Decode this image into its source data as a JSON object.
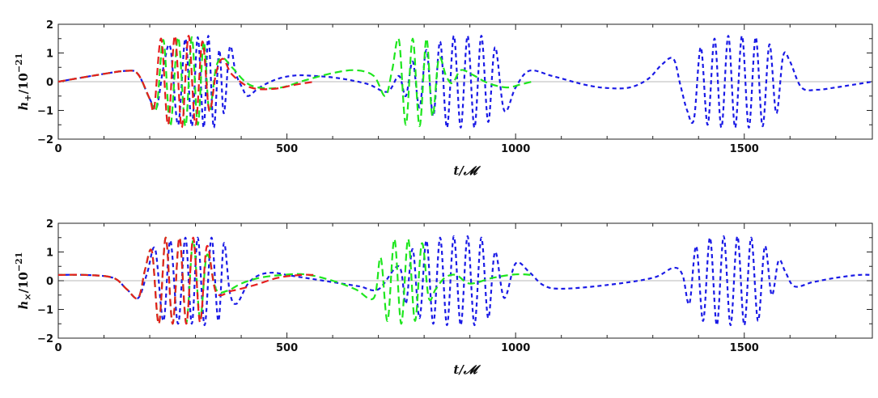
{
  "chart_data": [
    {
      "type": "line",
      "title": "",
      "xlabel": "t/𝓜",
      "ylabel_base": "h",
      "ylabel_sub": "+",
      "ylabel_tail": "/10",
      "ylabel_exp": "−21",
      "xlim": [
        0,
        1780
      ],
      "ylim": [
        -2,
        2
      ],
      "x_ticks": [
        0,
        500,
        1000,
        1500
      ],
      "y_ticks": [
        -2,
        -1,
        0,
        1,
        2
      ],
      "zero_line": true,
      "series": [
        {
          "color": "#1a1ae6",
          "dash": "short",
          "x": [
            0,
            80,
            150,
            175,
            200,
            215,
            230,
            245,
            262,
            278,
            292,
            305,
            318,
            328,
            340,
            352,
            362,
            375,
            388,
            402,
            415,
            440,
            480,
            520,
            560,
            600,
            640,
            680,
            720,
            745,
            760,
            775,
            790,
            805,
            820,
            835,
            850,
            865,
            880,
            895,
            910,
            925,
            940,
            955,
            975,
            1000,
            1030,
            1080,
            1150,
            1200,
            1250,
            1290,
            1320,
            1345,
            1360,
            1375,
            1390,
            1405,
            1420,
            1435,
            1450,
            1465,
            1480,
            1495,
            1510,
            1525,
            1540,
            1555,
            1570,
            1585,
            1600,
            1625,
            1660,
            1700,
            1740,
            1780
          ],
          "y": [
            0,
            0.22,
            0.38,
            0.25,
            -0.6,
            -0.9,
            0.5,
            1.2,
            -1.5,
            1.5,
            -1.55,
            1.55,
            -1.6,
            1.6,
            -1.6,
            1.1,
            -1.1,
            1.2,
            0.3,
            -0.2,
            -0.5,
            -0.2,
            0.1,
            0.22,
            0.2,
            0.15,
            0.05,
            -0.1,
            -0.35,
            0.2,
            -0.5,
            0.7,
            -0.9,
            1.1,
            -1.2,
            1.4,
            -1.6,
            1.6,
            -1.6,
            1.6,
            -1.6,
            1.6,
            -1.4,
            1.2,
            -1.0,
            -0.2,
            0.38,
            0.2,
            -0.1,
            -0.22,
            -0.2,
            0.1,
            0.6,
            0.8,
            -0.1,
            -1.0,
            -1.3,
            1.2,
            -1.5,
            1.5,
            -1.6,
            1.6,
            -1.6,
            1.6,
            -1.6,
            1.55,
            -1.55,
            1.3,
            -1.1,
            0.9,
            0.7,
            -0.2,
            -0.28,
            -0.2,
            -0.1,
            0.0
          ]
        },
        {
          "color": "#1ee61e",
          "dash": "long",
          "x": [
            0,
            80,
            150,
            175,
            200,
            215,
            230,
            245,
            262,
            278,
            292,
            305,
            318,
            330,
            345,
            360,
            380,
            420,
            480,
            540,
            600,
            650,
            690,
            715,
            730,
            745,
            760,
            775,
            790,
            805,
            818,
            832,
            848,
            862,
            880,
            905,
            940,
            980,
            1010,
            1035
          ],
          "y": [
            0,
            0.22,
            0.38,
            0.25,
            -0.6,
            -0.9,
            1.45,
            -1.55,
            1.55,
            -1.55,
            1.55,
            -1.5,
            1.4,
            -1.0,
            0.5,
            0.82,
            0.5,
            -0.12,
            -0.22,
            0.05,
            0.3,
            0.4,
            0.2,
            -0.5,
            0.4,
            1.45,
            -1.5,
            1.5,
            -1.55,
            1.5,
            -1.2,
            0.8,
            0.2,
            -0.05,
            0.4,
            0.25,
            -0.05,
            -0.2,
            -0.1,
            0.0
          ]
        },
        {
          "color": "#e61e1e",
          "dash": "long",
          "x": [
            0,
            80,
            150,
            175,
            200,
            210,
            225,
            240,
            255,
            270,
            285,
            300,
            315,
            330,
            345,
            360,
            380,
            420,
            470,
            520,
            560
          ],
          "y": [
            0,
            0.22,
            0.38,
            0.25,
            -0.6,
            -0.9,
            1.5,
            -1.5,
            1.6,
            -1.6,
            1.6,
            -1.5,
            1.4,
            -1.0,
            0.3,
            0.8,
            0.25,
            -0.2,
            -0.25,
            -0.1,
            0.0
          ]
        }
      ]
    },
    {
      "type": "line",
      "title": "",
      "xlabel": "t/𝓜",
      "ylabel_base": "h",
      "ylabel_sub": "×",
      "ylabel_tail": "/10",
      "ylabel_exp": "−21",
      "xlim": [
        0,
        1780
      ],
      "ylim": [
        -2,
        2
      ],
      "x_ticks": [
        0,
        500,
        1000,
        1500
      ],
      "y_ticks": [
        -2,
        -1,
        0,
        1,
        2
      ],
      "zero_line": true,
      "series": [
        {
          "color": "#1a1ae6",
          "dash": "short",
          "x": [
            0,
            60,
            120,
            150,
            175,
            195,
            212,
            230,
            245,
            262,
            278,
            292,
            305,
            320,
            335,
            350,
            362,
            375,
            390,
            415,
            440,
            470,
            500,
            540,
            580,
            620,
            660,
            700,
            745,
            760,
            775,
            790,
            805,
            820,
            835,
            850,
            865,
            880,
            895,
            910,
            925,
            940,
            955,
            975,
            1000,
            1030,
            1060,
            1100,
            1200,
            1300,
            1345,
            1365,
            1380,
            1395,
            1410,
            1425,
            1440,
            1455,
            1470,
            1485,
            1500,
            1515,
            1530,
            1545,
            1560,
            1575,
            1590,
            1610,
            1650,
            1700,
            1750,
            1780
          ],
          "y": [
            0.2,
            0.2,
            0.1,
            -0.3,
            -0.6,
            0.3,
            1.1,
            -1.4,
            1.4,
            -1.5,
            1.5,
            -1.5,
            1.5,
            -1.55,
            1.5,
            -1.4,
            1.3,
            -0.4,
            -0.8,
            -0.1,
            0.2,
            0.28,
            0.2,
            0.1,
            0.0,
            -0.1,
            -0.2,
            -0.3,
            0.5,
            -0.8,
            1.1,
            -1.3,
            1.4,
            -1.5,
            1.5,
            -1.55,
            1.55,
            -1.55,
            1.55,
            -1.55,
            1.5,
            -1.3,
            1.0,
            -0.6,
            0.6,
            0.3,
            -0.15,
            -0.28,
            -0.15,
            0.1,
            0.45,
            0.2,
            -0.8,
            1.2,
            -1.4,
            1.5,
            -1.55,
            1.55,
            -1.55,
            1.55,
            -1.55,
            1.5,
            -1.4,
            1.2,
            -0.5,
            0.7,
            0.3,
            -0.2,
            -0.05,
            0.1,
            0.2,
            0.2
          ]
        },
        {
          "color": "#1ee61e",
          "dash": "long",
          "x": [
            0,
            60,
            120,
            150,
            175,
            190,
            205,
            220,
            235,
            250,
            265,
            280,
            295,
            310,
            325,
            345,
            370,
            400,
            440,
            490,
            540,
            600,
            650,
            690,
            705,
            720,
            735,
            750,
            765,
            780,
            795,
            810,
            825,
            845,
            870,
            900,
            950,
            1000,
            1035
          ],
          "y": [
            0.2,
            0.2,
            0.1,
            -0.3,
            -0.6,
            0.4,
            1.0,
            -1.5,
            1.5,
            -1.5,
            1.5,
            -1.45,
            1.4,
            -1.3,
            0.9,
            -0.3,
            -0.35,
            -0.1,
            0.1,
            0.2,
            0.22,
            0.0,
            -0.3,
            -0.6,
            0.8,
            -1.4,
            1.45,
            -1.5,
            1.45,
            -1.4,
            1.3,
            -0.6,
            -0.3,
            0.1,
            0.2,
            -0.1,
            0.1,
            0.22,
            0.2
          ]
        },
        {
          "color": "#e61e1e",
          "dash": "long",
          "x": [
            0,
            60,
            120,
            150,
            175,
            190,
            205,
            220,
            235,
            250,
            265,
            280,
            295,
            310,
            325,
            345,
            380,
            430,
            480,
            530,
            560
          ],
          "y": [
            0.2,
            0.2,
            0.1,
            -0.3,
            -0.6,
            0.4,
            1.0,
            -1.5,
            1.5,
            -1.5,
            1.5,
            -1.5,
            1.5,
            -1.45,
            1.2,
            -0.4,
            -0.35,
            -0.15,
            0.1,
            0.2,
            0.2
          ]
        }
      ]
    }
  ]
}
